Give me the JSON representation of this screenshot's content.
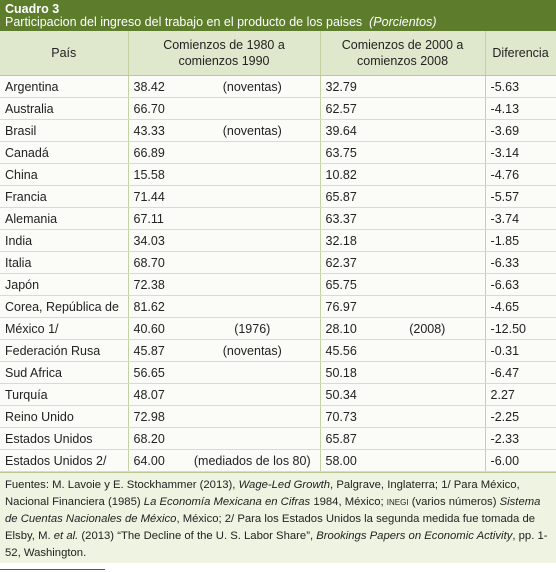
{
  "header": {
    "label": "Cuadro 3",
    "title": "Participacion del ingreso del trabajo en el producto de los paises",
    "unit": "(Porcientos)"
  },
  "table": {
    "columns": [
      [
        "País"
      ],
      [
        "Comienzos de 1980 a",
        "comienzos 1990"
      ],
      [
        "Comienzos de 2000 a",
        "comienzos 2008"
      ],
      [
        "Diferencia"
      ]
    ],
    "rows": [
      [
        "Argentina",
        "38.42",
        "(noventas)",
        "32.79",
        null,
        "-5.63"
      ],
      [
        "Australia",
        "66.70",
        null,
        "62.57",
        null,
        "-4.13"
      ],
      [
        "Brasil",
        "43.33",
        "(noventas)",
        "39.64",
        null,
        "-3.69"
      ],
      [
        "Canadá",
        "66.89",
        null,
        "63.75",
        null,
        "-3.14"
      ],
      [
        "China",
        "15.58",
        null,
        "10.82",
        null,
        "-4.76"
      ],
      [
        "Francia",
        "71.44",
        null,
        "65.87",
        null,
        "-5.57"
      ],
      [
        "Alemania",
        "67.11",
        null,
        "63.37",
        null,
        "-3.74"
      ],
      [
        "India",
        "34.03",
        null,
        "32.18",
        null,
        "-1.85"
      ],
      [
        "Italia",
        "68.70",
        null,
        "62.37",
        null,
        "-6.33"
      ],
      [
        "Japón",
        "72.38",
        null,
        "65.75",
        null,
        "-6.63"
      ],
      [
        "Corea, República de",
        "81.62",
        null,
        "76.97",
        null,
        "-4.65"
      ],
      [
        "México 1/",
        "40.60",
        "(1976)",
        "28.10",
        "(2008)",
        "-12.50"
      ],
      [
        "Federación Rusa",
        "45.87",
        "(noventas)",
        "45.56",
        null,
        "-0.31"
      ],
      [
        "Sud Africa",
        "56.65",
        null,
        "50.18",
        null,
        "-6.47"
      ],
      [
        "Turquía",
        "48.07",
        null,
        "50.34",
        null,
        "2.27"
      ],
      [
        "Reino Unido",
        "72.98",
        null,
        "70.73",
        null,
        "-2.25"
      ],
      [
        "Estados Unidos",
        "68.20",
        null,
        "65.87",
        null,
        "-2.33"
      ],
      [
        "Estados Unidos 2/",
        "64.00",
        "(mediados de los 80)",
        "58.00",
        null,
        "-6.00"
      ]
    ]
  },
  "footnote": [
    "Fuentes: M. Lavoie y E. Stockhammer (2013), ",
    "Wage-Led Growth",
    ", Palgrave, Inglaterra; 1/ Para México, Nacional Financiera (1985) ",
    "La Economía Mexicana en Cifras",
    " 1984, México; ",
    "INEGI",
    " (varios números) ",
    "Sistema de Cuentas Nacionales de México",
    ", México; 2/ Para los Estados Unidos la segunda medida fue tomada de Elsby, M. ",
    "et al.",
    " (2013) “The Decline of the U. S. Labor Share”, ",
    "Brookings Papers on Economic Activity",
    ", pp. 1-52, Washington."
  ]
}
